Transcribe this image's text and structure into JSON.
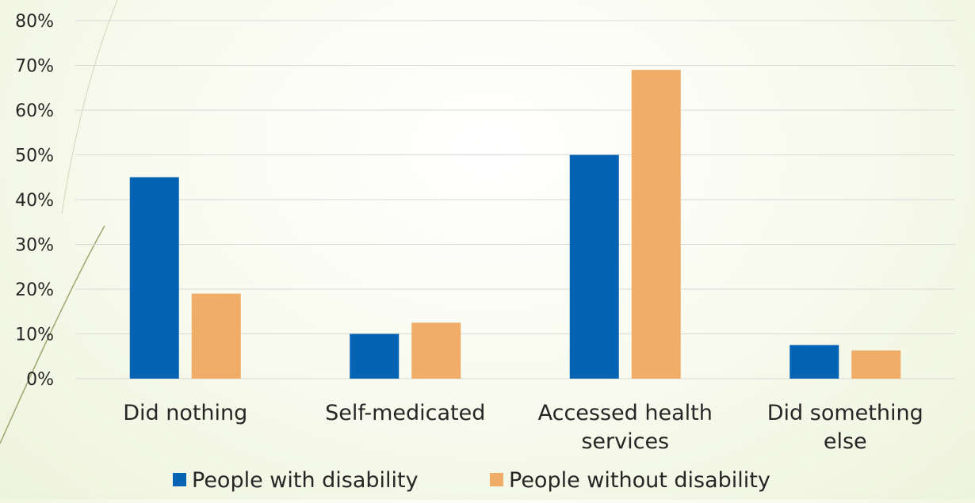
{
  "chart_data": {
    "type": "bar",
    "categories": [
      [
        "Did nothing"
      ],
      [
        "Self-medicated"
      ],
      [
        "Accessed health",
        "services"
      ],
      [
        "Did something",
        "else"
      ]
    ],
    "series": [
      {
        "name": "People with disability",
        "color": "#0563b3",
        "values": [
          45,
          10,
          50,
          7.5
        ]
      },
      {
        "name": "People without disability",
        "color": "#f0ad68",
        "values": [
          19,
          12.5,
          69,
          6.3
        ]
      }
    ],
    "ylim": [
      0,
      80
    ],
    "yticks": [
      "0%",
      "10%",
      "20%",
      "30%",
      "40%",
      "50%",
      "60%",
      "70%",
      "80%"
    ],
    "grid": true,
    "legend_position": "bottom"
  },
  "colors": {
    "gridline": "#d9d9d9",
    "text": "#262626"
  }
}
